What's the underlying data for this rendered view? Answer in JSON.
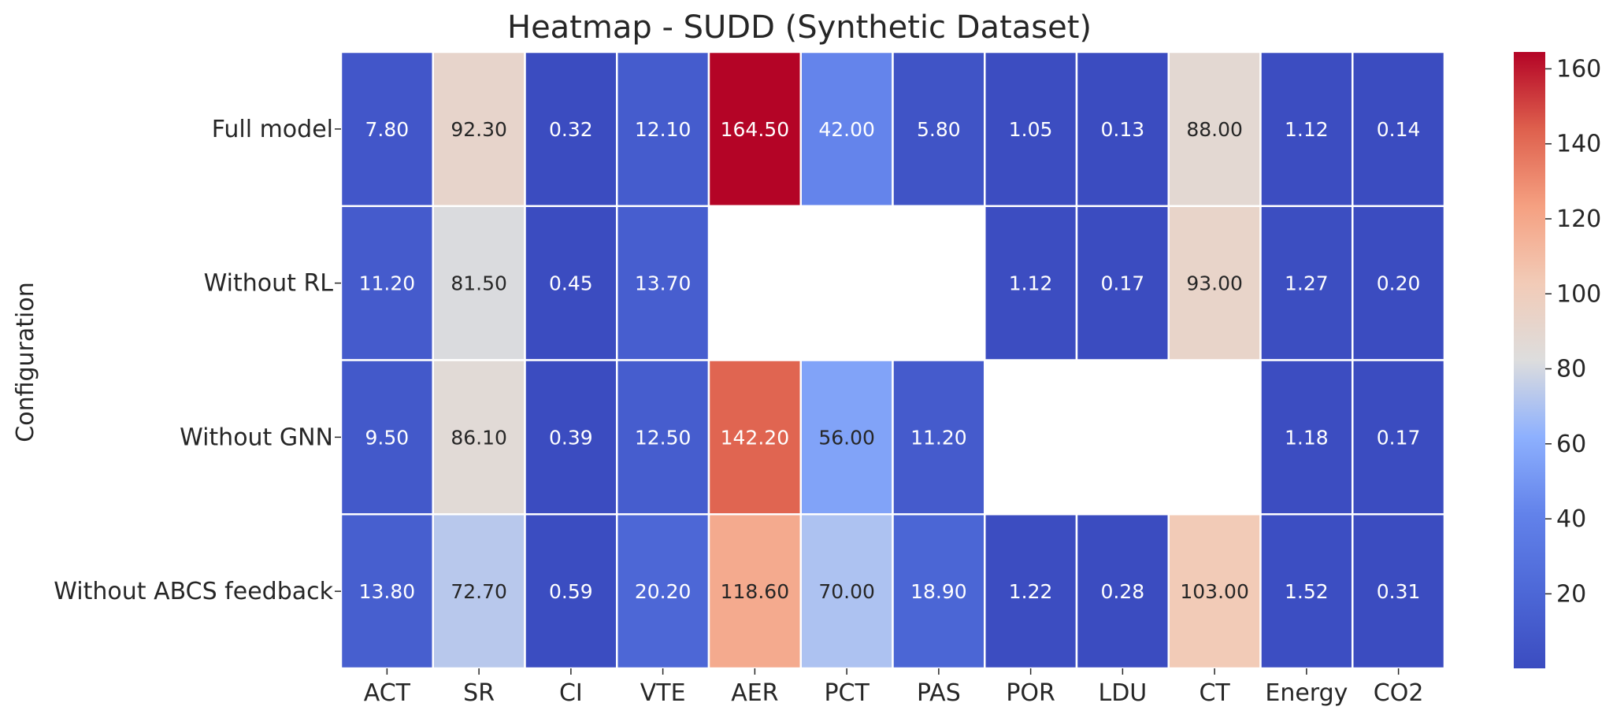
{
  "chart_data": {
    "type": "heatmap",
    "title": "Heatmap - SUDD (Synthetic Dataset)",
    "ylabel": "Configuration",
    "xlabel": "",
    "columns": [
      "ACT",
      "SR",
      "CI",
      "VTE",
      "AER",
      "PCT",
      "PAS",
      "POR",
      "LDU",
      "CT",
      "Energy",
      "CO2"
    ],
    "rows": [
      "Full model",
      "Without RL",
      "Without GNN",
      "Without ABCS feedback"
    ],
    "values": [
      [
        7.8,
        92.3,
        0.32,
        12.1,
        164.5,
        42.0,
        5.8,
        1.05,
        0.13,
        88.0,
        1.12,
        0.14
      ],
      [
        11.2,
        81.5,
        0.45,
        13.7,
        null,
        null,
        null,
        1.12,
        0.17,
        93.0,
        1.27,
        0.2
      ],
      [
        9.5,
        86.1,
        0.39,
        12.5,
        142.2,
        56.0,
        11.2,
        null,
        null,
        null,
        1.18,
        0.17
      ],
      [
        13.8,
        72.7,
        0.59,
        20.2,
        118.6,
        70.0,
        18.9,
        1.22,
        0.28,
        103.0,
        1.52,
        0.31
      ]
    ],
    "labels": [
      [
        "7.80",
        "92.30",
        "0.32",
        "12.10",
        "164.50",
        "42.00",
        "5.80",
        "1.05",
        "0.13",
        "88.00",
        "1.12",
        "0.14"
      ],
      [
        "11.20",
        "81.50",
        "0.45",
        "13.70",
        "",
        "",
        "",
        "1.12",
        "0.17",
        "93.00",
        "1.27",
        "0.20"
      ],
      [
        "9.50",
        "86.10",
        "0.39",
        "12.50",
        "142.20",
        "56.00",
        "11.20",
        "",
        "",
        "",
        "1.18",
        "0.17"
      ],
      [
        "13.80",
        "72.70",
        "0.59",
        "20.20",
        "118.60",
        "70.00",
        "18.90",
        "1.22",
        "0.28",
        "103.00",
        "1.52",
        "0.31"
      ]
    ],
    "colormap": "coolwarm",
    "vmin": 0.13,
    "vmax": 164.5,
    "colorbar_ticks": [
      20,
      40,
      60,
      80,
      100,
      120,
      140,
      160
    ],
    "colorbar_tick_labels": [
      "20",
      "40",
      "60",
      "80",
      "100",
      "120",
      "140",
      "160"
    ]
  }
}
